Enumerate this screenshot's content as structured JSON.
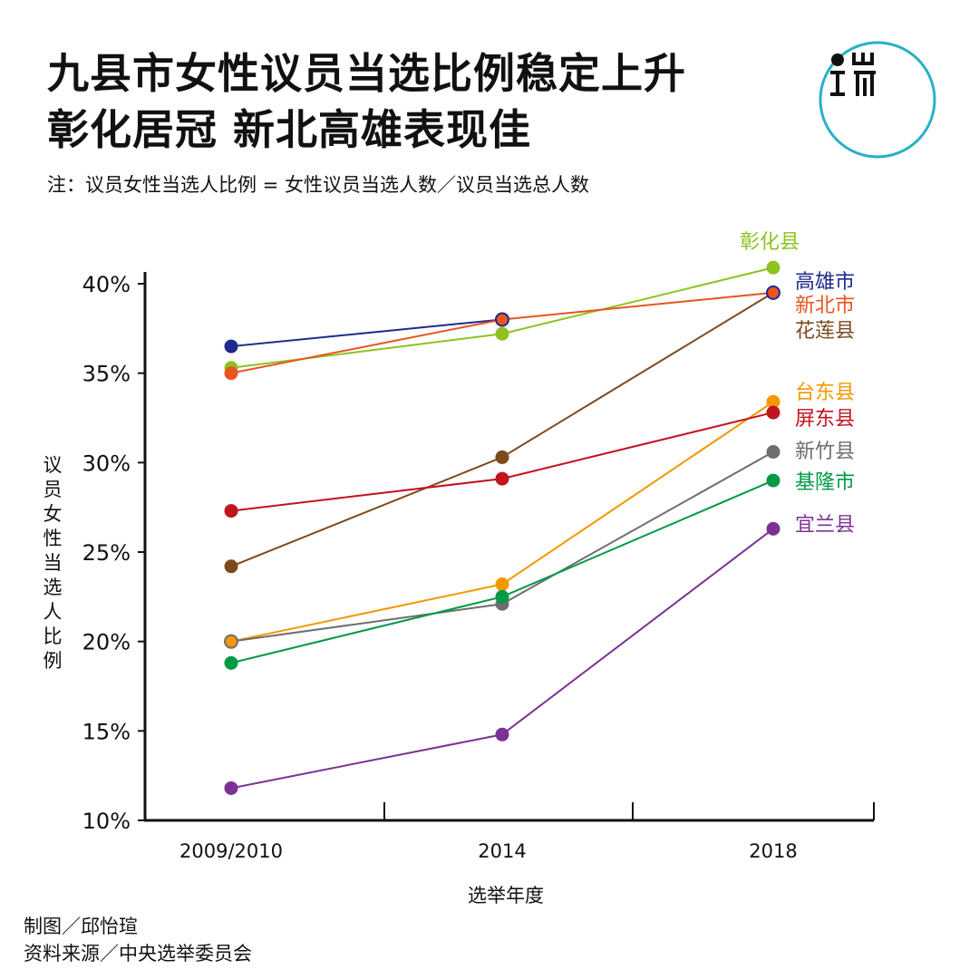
{
  "title_lines": [
    "九县市女性议员当选比例稳定上升",
    "彰化居冠  新北高雄表现佳"
  ],
  "note": "注：议员女性当选人比例 = 女性议员当选人数／议员当选总人数",
  "logo": {
    "icon": "端-media-logo",
    "ring_color": "#2ab0c8"
  },
  "credits": {
    "chart_by": "制图／邱怡瑄",
    "source": "资料来源／中央选举委员会"
  },
  "chart_data": {
    "type": "line",
    "title": "九县市女性议员当选比例稳定上升 彰化居冠 新北高雄表现佳",
    "xlabel": "选举年度",
    "ylabel": "议员女性当选人比例",
    "categories": [
      "2009/2010",
      "2014",
      "2018"
    ],
    "y_ticks": [
      "10%",
      "15%",
      "20%",
      "25%",
      "30%",
      "35%",
      "40%"
    ],
    "ylim": [
      10,
      40.5
    ],
    "grid": false,
    "legend": "right, labels beside end points",
    "series": [
      {
        "name": "彰化县",
        "color": "#8dc21f",
        "values": [
          35.3,
          37.2,
          40.9
        ]
      },
      {
        "name": "高雄市",
        "color": "#1f2a8c",
        "values": [
          36.5,
          38.0,
          null
        ]
      },
      {
        "name": "新北市",
        "color": "#e8551f",
        "values": [
          35.0,
          38.0,
          39.5
        ]
      },
      {
        "name": "花莲县",
        "color": "#7d4a1e",
        "values": [
          24.2,
          30.3,
          39.5
        ]
      },
      {
        "name": "台东县",
        "color": "#f39800",
        "values": [
          20.0,
          23.2,
          33.4
        ]
      },
      {
        "name": "屏东县",
        "color": "#c0141e",
        "values": [
          27.3,
          29.1,
          32.8
        ]
      },
      {
        "name": "新竹县",
        "color": "#6e6e6e",
        "values": [
          20.0,
          22.1,
          30.6
        ]
      },
      {
        "name": "基隆市",
        "color": "#009a44",
        "values": [
          18.8,
          22.5,
          29.0
        ]
      },
      {
        "name": "宜兰县",
        "color": "#7b3294",
        "values": [
          11.8,
          14.8,
          26.3
        ]
      }
    ]
  }
}
